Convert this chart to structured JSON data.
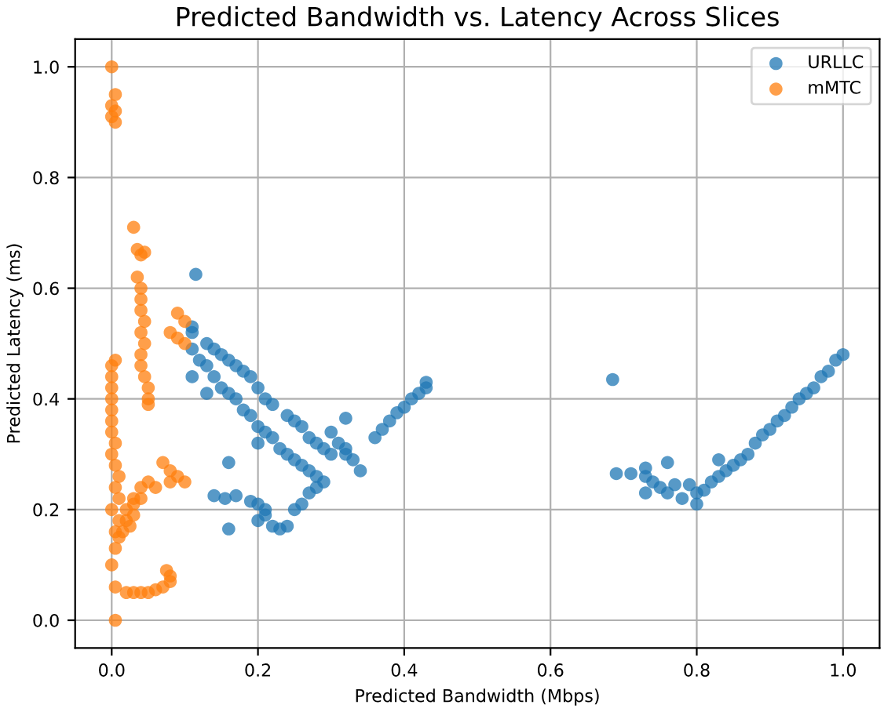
{
  "chart_data": {
    "type": "scatter",
    "title": "Predicted Bandwidth vs. Latency Across Slices",
    "xlabel": "Predicted Bandwidth (Mbps)",
    "ylabel": "Predicted Latency (ms)",
    "xlim": [
      -0.05,
      1.05
    ],
    "ylim": [
      -0.05,
      1.05
    ],
    "xticks": [
      {
        "value": 0,
        "label": "0.0"
      },
      0.2,
      0.4,
      0.6,
      0.8,
      {
        "value": 1,
        "label": "1.0"
      }
    ],
    "yticks": [
      {
        "value": 0,
        "label": "0.0"
      },
      0.2,
      0.4,
      0.6,
      0.8,
      {
        "value": 1,
        "label": "1.0"
      }
    ],
    "grid": true,
    "legend": "top right",
    "marker": "circle",
    "series": [
      {
        "name": "URLLC",
        "color": "#1f77b4",
        "x": [
          0.115,
          0.11,
          0.11,
          0.13,
          0.14,
          0.15,
          0.16,
          0.17,
          0.18,
          0.19,
          0.2,
          0.21,
          0.22,
          0.24,
          0.25,
          0.26,
          0.27,
          0.28,
          0.29,
          0.3,
          0.32,
          0.33,
          0.34,
          0.11,
          0.12,
          0.13,
          0.14,
          0.15,
          0.16,
          0.17,
          0.18,
          0.19,
          0.2,
          0.21,
          0.22,
          0.23,
          0.24,
          0.25,
          0.26,
          0.27,
          0.28,
          0.29,
          0.11,
          0.13,
          0.2,
          0.16,
          0.14,
          0.155,
          0.17,
          0.19,
          0.2,
          0.21,
          0.2,
          0.21,
          0.22,
          0.23,
          0.24,
          0.16,
          0.25,
          0.26,
          0.27,
          0.28,
          0.31,
          0.32,
          0.32,
          0.3,
          0.36,
          0.37,
          0.38,
          0.39,
          0.4,
          0.41,
          0.42,
          0.43,
          0.43,
          0.685,
          0.69,
          0.71,
          0.73,
          0.73,
          0.74,
          0.73,
          0.75,
          0.76,
          0.76,
          0.77,
          0.78,
          0.79,
          0.8,
          0.8,
          0.81,
          0.82,
          0.83,
          0.83,
          0.84,
          0.85,
          0.86,
          0.87,
          0.88,
          0.89,
          0.9,
          0.91,
          0.92,
          0.93,
          0.94,
          0.95,
          0.96,
          0.97,
          0.98,
          0.99,
          1.0
        ],
        "values": [
          0.625,
          0.53,
          0.52,
          0.5,
          0.49,
          0.48,
          0.47,
          0.46,
          0.45,
          0.44,
          0.42,
          0.4,
          0.39,
          0.37,
          0.36,
          0.35,
          0.33,
          0.32,
          0.31,
          0.3,
          0.3,
          0.29,
          0.27,
          0.49,
          0.47,
          0.46,
          0.44,
          0.42,
          0.41,
          0.4,
          0.38,
          0.37,
          0.35,
          0.34,
          0.33,
          0.31,
          0.3,
          0.29,
          0.28,
          0.27,
          0.26,
          0.25,
          0.44,
          0.41,
          0.32,
          0.285,
          0.225,
          0.22,
          0.225,
          0.215,
          0.21,
          0.2,
          0.18,
          0.19,
          0.17,
          0.165,
          0.17,
          0.165,
          0.2,
          0.21,
          0.23,
          0.24,
          0.32,
          0.31,
          0.365,
          0.34,
          0.33,
          0.345,
          0.36,
          0.375,
          0.385,
          0.4,
          0.41,
          0.42,
          0.43,
          0.435,
          0.265,
          0.265,
          0.275,
          0.26,
          0.25,
          0.23,
          0.24,
          0.285,
          0.23,
          0.245,
          0.22,
          0.245,
          0.23,
          0.21,
          0.235,
          0.25,
          0.26,
          0.29,
          0.27,
          0.28,
          0.29,
          0.3,
          0.32,
          0.335,
          0.345,
          0.36,
          0.37,
          0.385,
          0.4,
          0.41,
          0.42,
          0.44,
          0.45,
          0.47,
          0.48
        ]
      },
      {
        "name": "mMTC",
        "color": "#ff7f0e",
        "x": [
          0.0,
          0.005,
          0.0,
          0.005,
          0.0,
          0.005,
          0.005,
          0.0,
          0.0,
          0.0,
          0.0,
          0.0,
          0.0,
          0.0,
          0.005,
          0.0,
          0.005,
          0.01,
          0.005,
          0.01,
          0.0,
          0.01,
          0.005,
          0.005,
          0.0,
          0.005,
          0.005,
          0.03,
          0.035,
          0.045,
          0.04,
          0.035,
          0.04,
          0.04,
          0.04,
          0.045,
          0.04,
          0.045,
          0.04,
          0.04,
          0.045,
          0.05,
          0.05,
          0.05,
          0.09,
          0.1,
          0.08,
          0.09,
          0.1,
          0.07,
          0.08,
          0.09,
          0.08,
          0.1,
          0.05,
          0.06,
          0.04,
          0.03,
          0.04,
          0.03,
          0.02,
          0.02,
          0.015,
          0.01,
          0.025,
          0.03,
          0.02,
          0.03,
          0.04,
          0.05,
          0.06,
          0.07,
          0.08,
          0.075,
          0.08
        ],
        "values": [
          1.0,
          0.95,
          0.93,
          0.92,
          0.91,
          0.9,
          0.47,
          0.46,
          0.44,
          0.42,
          0.4,
          0.38,
          0.36,
          0.34,
          0.32,
          0.3,
          0.28,
          0.26,
          0.24,
          0.22,
          0.2,
          0.18,
          0.16,
          0.13,
          0.1,
          0.06,
          0.0,
          0.71,
          0.67,
          0.665,
          0.66,
          0.62,
          0.6,
          0.58,
          0.56,
          0.54,
          0.52,
          0.5,
          0.48,
          0.46,
          0.44,
          0.42,
          0.4,
          0.39,
          0.555,
          0.54,
          0.52,
          0.51,
          0.5,
          0.285,
          0.27,
          0.26,
          0.25,
          0.25,
          0.25,
          0.24,
          0.24,
          0.22,
          0.22,
          0.21,
          0.2,
          0.18,
          0.16,
          0.15,
          0.17,
          0.19,
          0.05,
          0.05,
          0.05,
          0.05,
          0.055,
          0.06,
          0.07,
          0.09,
          0.08
        ]
      }
    ]
  }
}
